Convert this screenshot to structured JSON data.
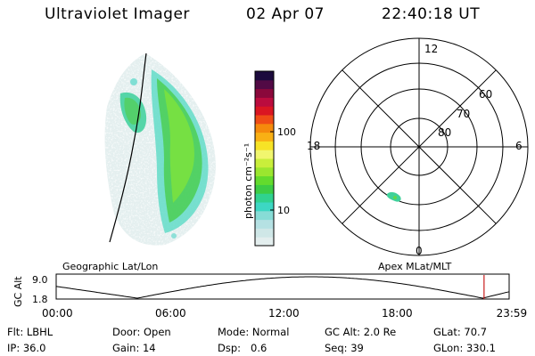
{
  "header": {
    "instrument": "Ultraviolet Imager",
    "date": "02 Apr 07",
    "time": "22:40:18 UT"
  },
  "colorbar": {
    "label": "photon cm⁻²s⁻¹",
    "ticks": [
      {
        "value": 10,
        "label": "10"
      },
      {
        "value": 100,
        "label": "100"
      }
    ],
    "colors": [
      "#e3eeee",
      "#cfe7e7",
      "#b5e1e3",
      "#87dcd6",
      "#3dd7c3",
      "#30d28f",
      "#3ccc45",
      "#63db2d",
      "#9be62f",
      "#c9ee3b",
      "#f1f66e",
      "#f7e326",
      "#f9b014",
      "#f58a0c",
      "#ef4c16",
      "#da1622",
      "#bb0c3e",
      "#8a083b",
      "#520a45",
      "#1c0a3d"
    ]
  },
  "polar": {
    "mlt_labels": {
      "top": "12",
      "left": "18",
      "right": "6",
      "bottom": "0"
    },
    "lat_labels": [
      "60",
      "70",
      "80"
    ]
  },
  "timeline": {
    "left_label": "Geographic Lat/Lon",
    "right_label": "Apex MLat/MLT",
    "axis_label": "GC Alt",
    "y_ticks": [
      "9.0",
      "1.8"
    ],
    "x_ticks": [
      "00:00",
      "06:00",
      "12:00",
      "18:00",
      "23:59"
    ],
    "current_marker_hour": 22.67
  },
  "info": {
    "row1": [
      {
        "label": "Flt:",
        "value": "LBHL"
      },
      {
        "label": "Door:",
        "value": "Open"
      },
      {
        "label": "Mode:",
        "value": "Normal"
      },
      {
        "label": "GC Alt:",
        "value": "2.0 Re"
      },
      {
        "label": "GLat:",
        "value": "70.7"
      }
    ],
    "row2": [
      {
        "label": "IP:",
        "value": "36.0"
      },
      {
        "label": "Gain:",
        "value": "14"
      },
      {
        "label": "Dsp:",
        "value": "0.6"
      },
      {
        "label": "Seq:",
        "value": "39"
      },
      {
        "label": "GLon:",
        "value": "330.1"
      }
    ]
  }
}
